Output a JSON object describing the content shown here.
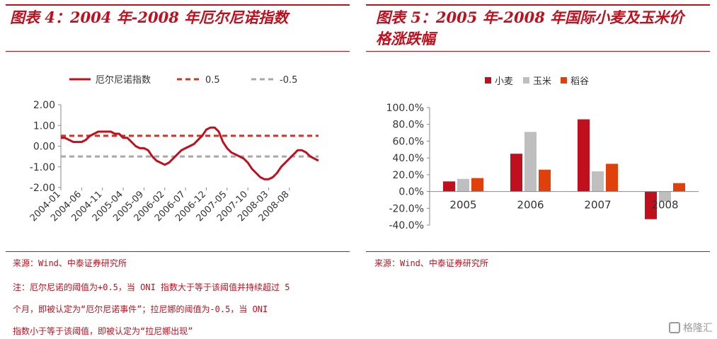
{
  "left": {
    "title": "图表 4：2004 年-2008 年厄尔尼诺指数",
    "source": "来源：Wind、中泰证券研究所",
    "notes": [
      "注：厄尔尼诺的阈值为+0.5，当 ONI 指数大于等于该阈值并持续超过 5",
      "个月，即被认定为“厄尔尼诺事件”；拉尼娜的阈值为-0.5，当 ONI",
      "指数小于等于该阈值，即被认定为“拉尼娜出现”"
    ]
  },
  "right": {
    "title_line1": "图表 5：2005 年-2008 年国际小麦及玉米价",
    "title_line2": "格涨跌幅",
    "source": "来源：Wind、中泰证券研究所"
  },
  "watermark": "格隆汇",
  "colors": {
    "accent": "#c0101e",
    "oni": "#c0101e",
    "upper": "#c0392b",
    "lower": "#a8a8a8",
    "wheat": "#c0101e",
    "corn": "#bfbfbf",
    "rice": "#e0400a"
  },
  "chart_data": [
    {
      "type": "line",
      "legend": [
        "厄尔尼诺指数",
        "0.5",
        "-0.5"
      ],
      "legend_position": "top",
      "ylim": [
        -2.0,
        2.0
      ],
      "yticks": [
        "2.00",
        "1.00",
        "0.00",
        "-1.00",
        "-2.00"
      ],
      "x_labels": [
        "2004-01",
        "2004-06",
        "2004-11",
        "2005-04",
        "2005-09",
        "2006-02",
        "2006-07",
        "2006-12",
        "2007-05",
        "2007-10",
        "2008-03",
        "2008-08"
      ],
      "series": [
        {
          "name": "厄尔尼诺指数",
          "values": [
            0.4,
            0.4,
            0.3,
            0.2,
            0.2,
            0.2,
            0.3,
            0.5,
            0.6,
            0.7,
            0.7,
            0.7,
            0.7,
            0.6,
            0.6,
            0.4,
            0.4,
            0.2,
            0.0,
            -0.1,
            -0.1,
            -0.2,
            -0.5,
            -0.7,
            -0.8,
            -0.9,
            -0.8,
            -0.6,
            -0.4,
            -0.2,
            -0.1,
            0.0,
            0.1,
            0.3,
            0.5,
            0.8,
            0.9,
            0.9,
            0.7,
            0.2,
            -0.1,
            -0.3,
            -0.4,
            -0.5,
            -0.6,
            -0.8,
            -1.1,
            -1.3,
            -1.5,
            -1.6,
            -1.6,
            -1.5,
            -1.3,
            -1.0,
            -0.8,
            -0.6,
            -0.4,
            -0.2,
            -0.2,
            -0.3,
            -0.5,
            -0.6,
            -0.7
          ]
        },
        {
          "name": "0.5",
          "values": [
            0.5
          ]
        },
        {
          "name": "-0.5",
          "values": [
            -0.5
          ]
        }
      ]
    },
    {
      "type": "bar",
      "categories": [
        "2005",
        "2006",
        "2007",
        "2008"
      ],
      "legend": [
        "小麦",
        "玉米",
        "稻谷"
      ],
      "legend_position": "top",
      "ylim": [
        -0.4,
        1.0
      ],
      "yticks": [
        "100.0%",
        "80.0%",
        "60.0%",
        "40.0%",
        "20.0%",
        "0.0%",
        "-20.0%",
        "-40.0%"
      ],
      "series": [
        {
          "name": "小麦",
          "values": [
            12,
            45,
            86,
            -33
          ]
        },
        {
          "name": "玉米",
          "values": [
            15,
            71,
            24,
            -12
          ]
        },
        {
          "name": "稻谷",
          "values": [
            16,
            26,
            33,
            10
          ]
        }
      ],
      "unit": "%"
    }
  ]
}
